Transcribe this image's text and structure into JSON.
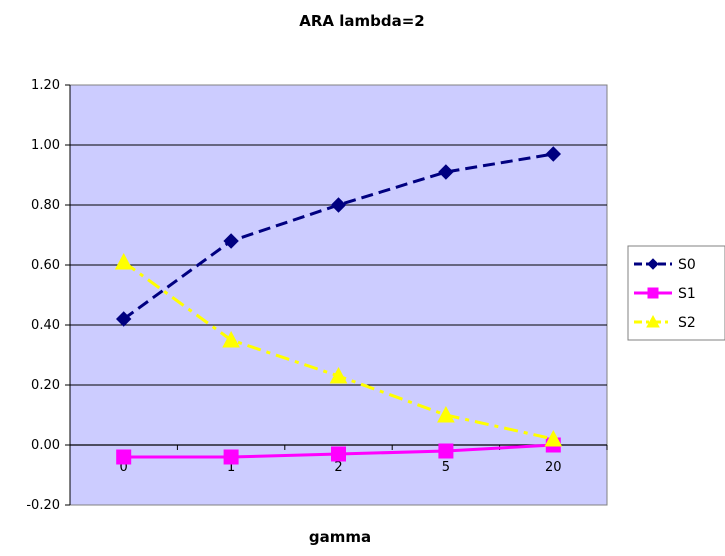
{
  "chart_data": {
    "type": "line",
    "title": "ARA lambda=2",
    "xlabel": "gamma",
    "ylabel": "",
    "categories": [
      "0",
      "1",
      "2",
      "5",
      "20"
    ],
    "ylim": [
      -0.2,
      1.2
    ],
    "ytick_step": 0.2,
    "yticks": [
      "-0.20",
      "0.00",
      "0.20",
      "0.40",
      "0.60",
      "0.80",
      "1.00",
      "1.20"
    ],
    "grid": true,
    "legend_position": "right",
    "plot_background": "#ccccff",
    "series": [
      {
        "name": "S0",
        "values": [
          0.42,
          0.68,
          0.8,
          0.91,
          0.97
        ],
        "color": "#000080",
        "marker": "diamond",
        "dash": "dashed"
      },
      {
        "name": "S1",
        "values": [
          -0.04,
          -0.04,
          -0.03,
          -0.02,
          0.0
        ],
        "color": "#ff00ff",
        "marker": "square",
        "dash": "solid"
      },
      {
        "name": "S2",
        "values": [
          0.61,
          0.35,
          0.23,
          0.1,
          0.02
        ],
        "color": "#ffff00",
        "marker": "triangle",
        "dash": "dashdot"
      }
    ]
  }
}
